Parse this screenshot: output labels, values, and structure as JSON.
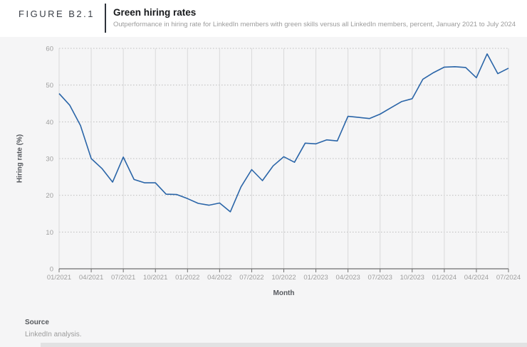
{
  "header": {
    "figure_label": "FIGURE B2.1",
    "title": "Green hiring rates",
    "subtitle": "Outperformance in hiring rate for LinkedIn members with green skills versus all LinkedIn members, percent, January 2021 to July 2024"
  },
  "chart_data": {
    "type": "line",
    "title": "Green hiring rates",
    "xlabel": "Month",
    "ylabel": "Hiring rate (%)",
    "x": [
      "01/2021",
      "02/2021",
      "03/2021",
      "04/2021",
      "05/2021",
      "06/2021",
      "07/2021",
      "08/2021",
      "09/2021",
      "10/2021",
      "11/2021",
      "12/2021",
      "01/2022",
      "02/2022",
      "03/2022",
      "04/2022",
      "05/2022",
      "06/2022",
      "07/2022",
      "08/2022",
      "09/2022",
      "10/2022",
      "11/2022",
      "12/2022",
      "01/2023",
      "02/2023",
      "03/2023",
      "04/2023",
      "05/2023",
      "06/2023",
      "07/2023",
      "08/2023",
      "09/2023",
      "10/2023",
      "11/2023",
      "12/2023",
      "01/2024",
      "02/2024",
      "03/2024",
      "04/2024",
      "05/2024",
      "06/2024",
      "07/2024"
    ],
    "values": [
      47.7,
      44.5,
      39.0,
      30.0,
      27.3,
      23.6,
      30.4,
      24.3,
      23.4,
      23.4,
      20.3,
      20.2,
      19.1,
      17.8,
      17.3,
      17.9,
      15.5,
      22.3,
      27.0,
      24.0,
      28.0,
      30.5,
      29.0,
      34.2,
      34.0,
      35.1,
      34.8,
      41.5,
      41.2,
      40.9,
      42.1,
      43.8,
      45.5,
      46.3,
      51.6,
      53.4,
      54.9,
      55.0,
      54.8,
      52.0,
      58.5,
      53.1,
      54.6
    ],
    "x_tick_labels": [
      "01/2021",
      "04/2021",
      "07/2021",
      "10/2021",
      "01/2022",
      "04/2022",
      "07/2022",
      "10/2022",
      "01/2023",
      "04/2023",
      "07/2023",
      "10/2023",
      "01/2024",
      "04/2024",
      "07/2024"
    ],
    "y_ticks": [
      0,
      10,
      20,
      30,
      40,
      50,
      60
    ],
    "ylim": [
      0,
      60
    ],
    "grid": "vertical-solid, horizontal-dotted",
    "legend": "none",
    "line_color": "#2a65a8",
    "colors": {
      "page_bg": "#f5f5f6",
      "header_bg": "#ffffff",
      "gridline_vertical": "#d9d9da",
      "gridline_dotted": "#bdbdbd",
      "axis": "#6f6f6f",
      "tick_label": "#9e9e9e"
    }
  },
  "source": {
    "label": "Source",
    "text": "LinkedIn analysis."
  }
}
